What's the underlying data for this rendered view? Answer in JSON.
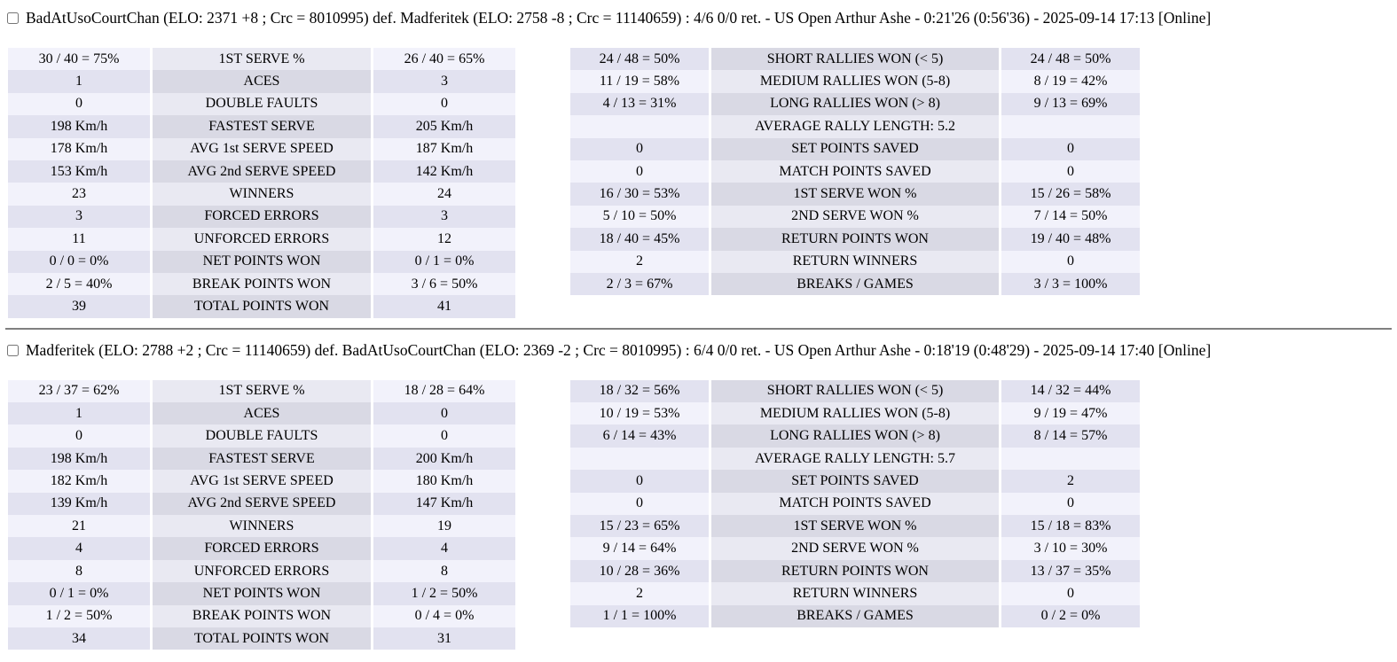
{
  "colors": {
    "page_bg": "#ffffff",
    "text": "#000000",
    "value_light": "#f2f2fb",
    "label_light": "#e9e9f2",
    "value_dark": "#e2e2f0",
    "label_dark": "#d9d9e4",
    "divider": "#d4d4d4"
  },
  "matches": [
    {
      "header": "BadAtUsoCourtChan (ELO: 2371 +8 ; Crc = 8010995) def. Madferitek (ELO: 2758 -8 ; Crc = 11140659) : 4/6 0/0 ret. - US Open Arthur Ashe - 0:21'26 (0:56'36) - 2025-09-14 17:13 [Online]",
      "serve_table": {
        "first_shade": "light",
        "rows": [
          [
            "30 / 40 = 75%",
            "1ST SERVE %",
            "26 / 40 = 65%"
          ],
          [
            "1",
            "ACES",
            "3"
          ],
          [
            "0",
            "DOUBLE FAULTS",
            "0"
          ],
          [
            "198 Km/h",
            "FASTEST SERVE",
            "205 Km/h"
          ],
          [
            "178 Km/h",
            "AVG 1st SERVE SPEED",
            "187 Km/h"
          ],
          [
            "153 Km/h",
            "AVG 2nd SERVE SPEED",
            "142 Km/h"
          ],
          [
            "23",
            "WINNERS",
            "24"
          ],
          [
            "3",
            "FORCED ERRORS",
            "3"
          ],
          [
            "11",
            "UNFORCED ERRORS",
            "12"
          ],
          [
            "0 / 0 = 0%",
            "NET POINTS WON",
            "0 / 1 = 0%"
          ],
          [
            "2 / 5 = 40%",
            "BREAK POINTS WON",
            "3 / 6 = 50%"
          ],
          [
            "39",
            "TOTAL POINTS WON",
            "41"
          ]
        ]
      },
      "rally_table": {
        "first_shade": "dark",
        "rows": [
          [
            "24 / 48 = 50%",
            "SHORT RALLIES WON (< 5)",
            "24 / 48 = 50%"
          ],
          [
            "11 / 19 = 58%",
            "MEDIUM RALLIES WON (5-8)",
            "8 / 19 = 42%"
          ],
          [
            "4 / 13 = 31%",
            "LONG RALLIES WON (> 8)",
            "9 / 13 = 69%"
          ],
          [
            "",
            "AVERAGE RALLY LENGTH: 5.2",
            ""
          ],
          [
            "0",
            "SET POINTS SAVED",
            "0"
          ],
          [
            "0",
            "MATCH POINTS SAVED",
            "0"
          ],
          [
            "16 / 30 = 53%",
            "1ST SERVE WON %",
            "15 / 26 = 58%"
          ],
          [
            "5 / 10 = 50%",
            "2ND SERVE WON %",
            "7 / 14 = 50%"
          ],
          [
            "18 / 40 = 45%",
            "RETURN POINTS WON",
            "19 / 40 = 48%"
          ],
          [
            "2",
            "RETURN WINNERS",
            "0"
          ],
          [
            "2 / 3 = 67%",
            "BREAKS / GAMES",
            "3 / 3 = 100%"
          ]
        ]
      }
    },
    {
      "header": "Madferitek (ELO: 2788 +2 ; Crc = 11140659) def. BadAtUsoCourtChan (ELO: 2369 -2 ; Crc = 8010995) : 6/4 0/0 ret. - US Open Arthur Ashe - 0:18'19 (0:48'29) - 2025-09-14 17:40 [Online]",
      "serve_table": {
        "first_shade": "light",
        "rows": [
          [
            "23 / 37 = 62%",
            "1ST SERVE %",
            "18 / 28 = 64%"
          ],
          [
            "1",
            "ACES",
            "0"
          ],
          [
            "0",
            "DOUBLE FAULTS",
            "0"
          ],
          [
            "198 Km/h",
            "FASTEST SERVE",
            "200 Km/h"
          ],
          [
            "182 Km/h",
            "AVG 1st SERVE SPEED",
            "180 Km/h"
          ],
          [
            "139 Km/h",
            "AVG 2nd SERVE SPEED",
            "147 Km/h"
          ],
          [
            "21",
            "WINNERS",
            "19"
          ],
          [
            "4",
            "FORCED ERRORS",
            "4"
          ],
          [
            "8",
            "UNFORCED ERRORS",
            "8"
          ],
          [
            "0 / 1 = 0%",
            "NET POINTS WON",
            "1 / 2 = 50%"
          ],
          [
            "1 / 2 = 50%",
            "BREAK POINTS WON",
            "0 / 4 = 0%"
          ],
          [
            "34",
            "TOTAL POINTS WON",
            "31"
          ]
        ]
      },
      "rally_table": {
        "first_shade": "dark",
        "rows": [
          [
            "18 / 32 = 56%",
            "SHORT RALLIES WON (< 5)",
            "14 / 32 = 44%"
          ],
          [
            "10 / 19 = 53%",
            "MEDIUM RALLIES WON (5-8)",
            "9 / 19 = 47%"
          ],
          [
            "6 / 14 = 43%",
            "LONG RALLIES WON (> 8)",
            "8 / 14 = 57%"
          ],
          [
            "",
            "AVERAGE RALLY LENGTH: 5.7",
            ""
          ],
          [
            "0",
            "SET POINTS SAVED",
            "2"
          ],
          [
            "0",
            "MATCH POINTS SAVED",
            "0"
          ],
          [
            "15 / 23 = 65%",
            "1ST SERVE WON %",
            "15 / 18 = 83%"
          ],
          [
            "9 / 14 = 64%",
            "2ND SERVE WON %",
            "3 / 10 = 30%"
          ],
          [
            "10 / 28 = 36%",
            "RETURN POINTS WON",
            "13 / 37 = 35%"
          ],
          [
            "2",
            "RETURN WINNERS",
            "0"
          ],
          [
            "1 / 1 = 100%",
            "BREAKS / GAMES",
            "0 / 2 = 0%"
          ]
        ]
      }
    }
  ]
}
